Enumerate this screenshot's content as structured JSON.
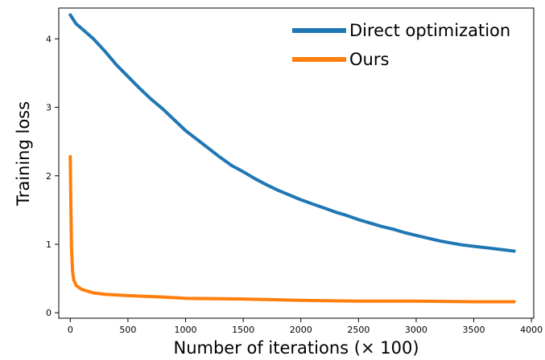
{
  "chart_data": {
    "type": "line",
    "title": "",
    "xlabel": "Number of iterations (× 100)",
    "ylabel": "Training loss",
    "xlim": [
      -100,
      4020
    ],
    "ylim": [
      -0.08,
      4.45
    ],
    "x_ticks": [
      0,
      500,
      1000,
      1500,
      2000,
      2500,
      3000,
      3500,
      4000
    ],
    "y_ticks": [
      0,
      1,
      2,
      3,
      4
    ],
    "grid": false,
    "legend_position": "top-right",
    "series": [
      {
        "name": "Direct optimization",
        "color": "#1f77b4",
        "x": [
          0,
          50,
          100,
          200,
          300,
          400,
          500,
          600,
          700,
          800,
          900,
          1000,
          1100,
          1200,
          1300,
          1400,
          1500,
          1600,
          1700,
          1800,
          1900,
          2000,
          2100,
          2200,
          2300,
          2400,
          2500,
          2600,
          2700,
          2800,
          2900,
          3000,
          3100,
          3200,
          3300,
          3400,
          3500,
          3600,
          3700,
          3800,
          3850
        ],
        "y": [
          4.35,
          4.22,
          4.15,
          4.0,
          3.82,
          3.62,
          3.45,
          3.28,
          3.12,
          2.98,
          2.82,
          2.66,
          2.53,
          2.4,
          2.27,
          2.15,
          2.06,
          1.96,
          1.87,
          1.79,
          1.72,
          1.65,
          1.59,
          1.53,
          1.47,
          1.42,
          1.36,
          1.31,
          1.26,
          1.22,
          1.17,
          1.13,
          1.09,
          1.05,
          1.02,
          0.99,
          0.97,
          0.95,
          0.93,
          0.91,
          0.9
        ]
      },
      {
        "name": "Ours",
        "color": "#ff7f0e",
        "x": [
          0,
          5,
          10,
          20,
          30,
          50,
          100,
          200,
          300,
          500,
          800,
          1000,
          1500,
          2000,
          2500,
          3000,
          3500,
          3850
        ],
        "y": [
          2.28,
          1.6,
          0.95,
          0.6,
          0.48,
          0.4,
          0.34,
          0.29,
          0.27,
          0.25,
          0.23,
          0.21,
          0.2,
          0.18,
          0.17,
          0.17,
          0.16,
          0.16
        ]
      }
    ]
  }
}
